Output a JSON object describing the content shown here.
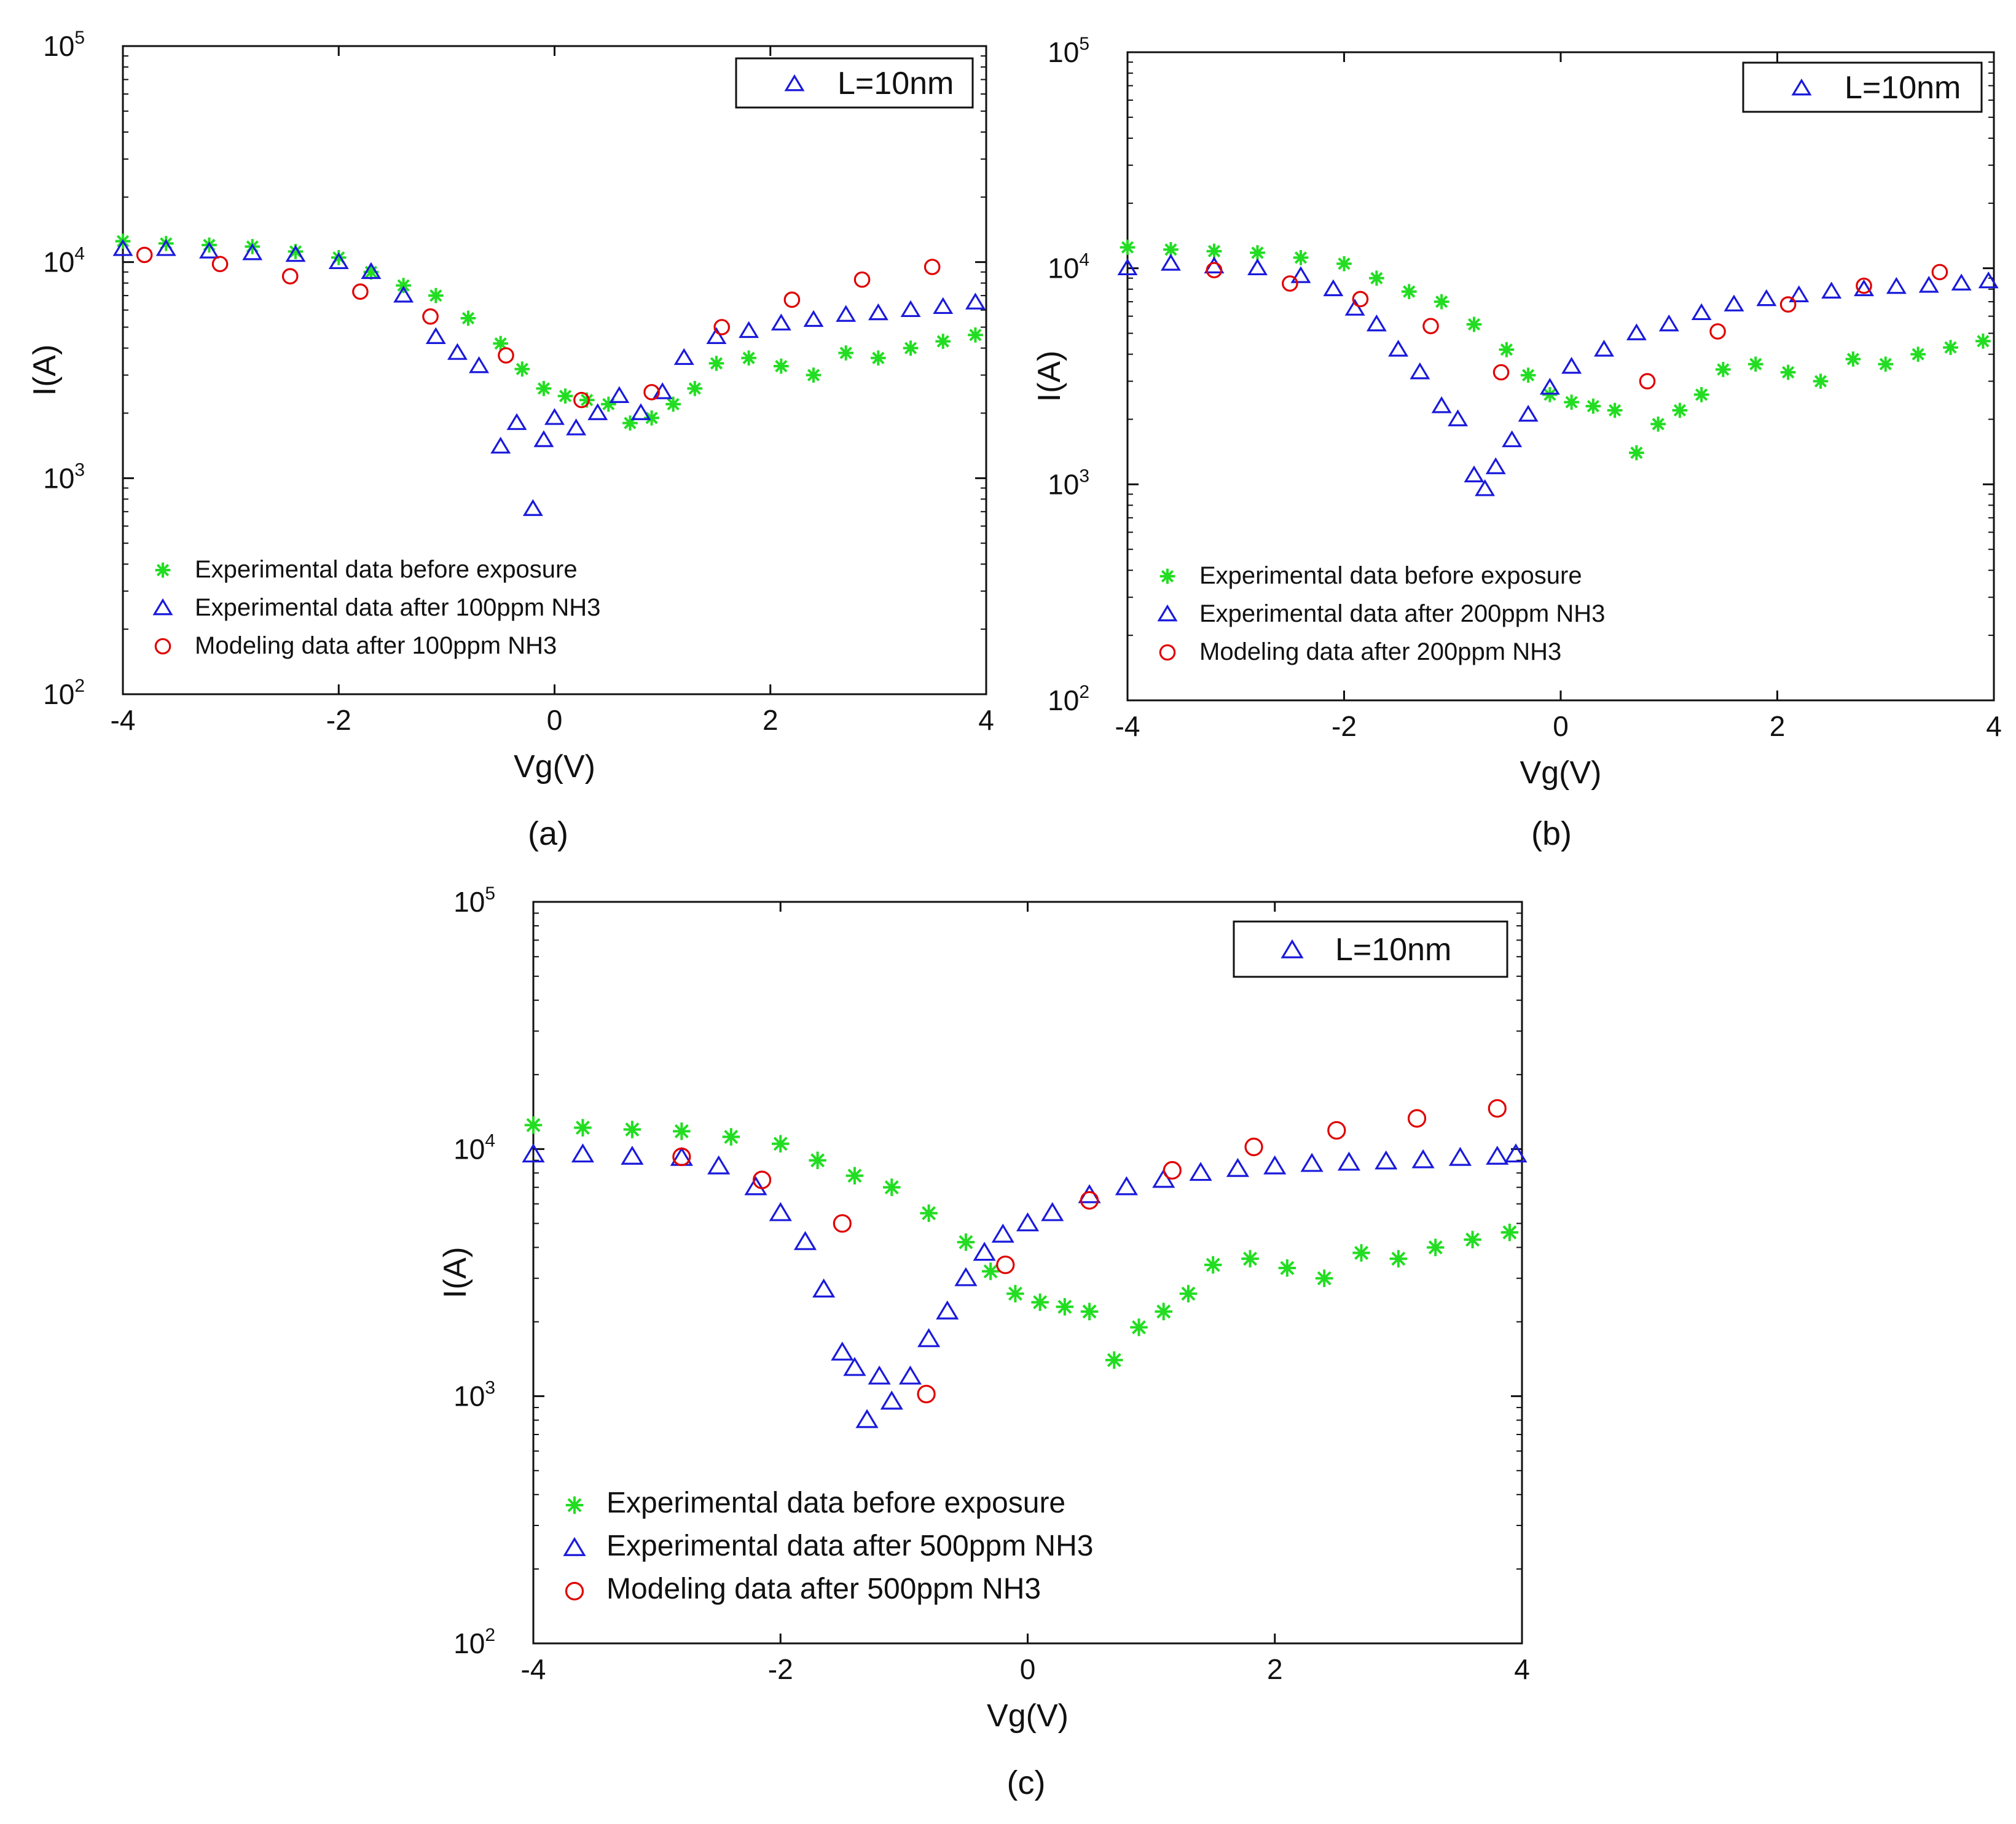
{
  "chart_data": [
    {
      "type": "scatter",
      "panel_label": "(a)",
      "xlabel": "Vg(V)",
      "ylabel": "I(A)",
      "xlim": [
        -4,
        4
      ],
      "ylim": [
        100,
        100000
      ],
      "yscale": "log",
      "x_ticks": [
        "-4",
        "-2",
        "0",
        "2",
        "4"
      ],
      "y_ticks": [
        {
          "base": "10",
          "exp": "2"
        },
        {
          "base": "10",
          "exp": "3"
        },
        {
          "base": "10",
          "exp": "4"
        },
        {
          "base": "10",
          "exp": "5"
        }
      ],
      "box_legend": "L=10nm",
      "legend": [
        "Experimental data before exposure",
        "Experimental data after 100ppm NH3",
        "Modeling data after 100ppm NH3"
      ],
      "series": [
        {
          "name": "Experimental data before exposure",
          "marker": "star",
          "color": "#22dd22",
          "x": [
            -4.0,
            -3.6,
            -3.2,
            -2.8,
            -2.4,
            -2.0,
            -1.7,
            -1.4,
            -1.1,
            -0.8,
            -0.5,
            -0.3,
            -0.1,
            0.1,
            0.3,
            0.5,
            0.7,
            0.9,
            1.1,
            1.3,
            1.5,
            1.8,
            2.1,
            2.4,
            2.7,
            3.0,
            3.3,
            3.6,
            3.9
          ],
          "y": [
            12500,
            12200,
            12000,
            11800,
            11200,
            10500,
            9000,
            7800,
            7000,
            5500,
            4200,
            3200,
            2600,
            2400,
            2300,
            2200,
            1800,
            1900,
            2200,
            2600,
            3400,
            3600,
            3300,
            3000,
            3800,
            3600,
            4000,
            4300,
            4600
          ]
        },
        {
          "name": "Experimental data after 100ppm NH3",
          "marker": "triangle",
          "color": "#1a1adc",
          "x": [
            -4.0,
            -3.6,
            -3.2,
            -2.8,
            -2.4,
            -2.0,
            -1.7,
            -1.4,
            -1.1,
            -0.9,
            -0.7,
            -0.5,
            -0.35,
            -0.2,
            -0.1,
            0.0,
            0.2,
            0.4,
            0.6,
            0.8,
            1.0,
            1.2,
            1.5,
            1.8,
            2.1,
            2.4,
            2.7,
            3.0,
            3.3,
            3.6,
            3.9
          ],
          "y": [
            11500,
            11500,
            11200,
            11000,
            10800,
            10000,
            9000,
            7000,
            4500,
            3800,
            3300,
            1400,
            1800,
            720,
            1500,
            1900,
            1700,
            2000,
            2400,
            2000,
            2500,
            3600,
            4500,
            4800,
            5200,
            5400,
            5700,
            5800,
            6000,
            6200,
            6500
          ]
        },
        {
          "name": "Modeling data after 100ppm NH3",
          "marker": "circle",
          "color": "#e00000",
          "x": [
            -3.8,
            -3.1,
            -2.45,
            -1.8,
            -1.15,
            -0.45,
            0.25,
            0.9,
            1.55,
            2.2,
            2.85,
            3.5
          ],
          "y": [
            10800,
            9800,
            8600,
            7300,
            5600,
            3700,
            2300,
            2500,
            5000,
            6700,
            8300,
            9500
          ]
        }
      ]
    },
    {
      "type": "scatter",
      "panel_label": "(b)",
      "xlabel": "Vg(V)",
      "ylabel": "I(A)",
      "xlim": [
        -4,
        4
      ],
      "ylim": [
        100,
        100000
      ],
      "yscale": "log",
      "x_ticks": [
        "-4",
        "-2",
        "0",
        "2",
        "4"
      ],
      "y_ticks": [
        {
          "base": "10",
          "exp": "2"
        },
        {
          "base": "10",
          "exp": "3"
        },
        {
          "base": "10",
          "exp": "4"
        },
        {
          "base": "10",
          "exp": "5"
        }
      ],
      "box_legend": "L=10nm",
      "legend": [
        "Experimental data before exposure",
        "Experimental data after 200ppm NH3",
        "Modeling data after 200ppm NH3"
      ],
      "series": [
        {
          "name": "Experimental data before exposure",
          "marker": "star",
          "color": "#22dd22",
          "x": [
            -4.0,
            -3.6,
            -3.2,
            -2.8,
            -2.4,
            -2.0,
            -1.7,
            -1.4,
            -1.1,
            -0.8,
            -0.5,
            -0.3,
            -0.1,
            0.1,
            0.3,
            0.5,
            0.7,
            0.9,
            1.1,
            1.3,
            1.5,
            1.8,
            2.1,
            2.4,
            2.7,
            3.0,
            3.3,
            3.6,
            3.9
          ],
          "y": [
            12500,
            12200,
            12000,
            11800,
            11200,
            10500,
            9000,
            7800,
            7000,
            5500,
            4200,
            3200,
            2600,
            2400,
            2300,
            2200,
            1400,
            1900,
            2200,
            2600,
            3400,
            3600,
            3300,
            3000,
            3800,
            3600,
            4000,
            4300,
            4600
          ]
        },
        {
          "name": "Experimental data after 200ppm NH3",
          "marker": "triangle",
          "color": "#1a1adc",
          "x": [
            -4.0,
            -3.6,
            -3.2,
            -2.8,
            -2.4,
            -2.1,
            -1.9,
            -1.7,
            -1.5,
            -1.3,
            -1.1,
            -0.95,
            -0.8,
            -0.7,
            -0.6,
            -0.45,
            -0.3,
            -0.1,
            0.1,
            0.4,
            0.7,
            1.0,
            1.3,
            1.6,
            1.9,
            2.2,
            2.5,
            2.8,
            3.1,
            3.4,
            3.7,
            3.95
          ],
          "y": [
            10000,
            10500,
            10200,
            10000,
            9200,
            8000,
            6500,
            5500,
            4200,
            3300,
            2300,
            2000,
            1100,
            950,
            1200,
            1600,
            2100,
            2800,
            3500,
            4200,
            5000,
            5500,
            6200,
            6800,
            7200,
            7500,
            7800,
            8000,
            8200,
            8300,
            8500,
            8700
          ]
        },
        {
          "name": "Modeling data after 200ppm NH3",
          "marker": "circle",
          "color": "#e00000",
          "x": [
            -3.2,
            -2.5,
            -1.85,
            -1.2,
            -0.55,
            0.8,
            1.45,
            2.1,
            2.8,
            3.5
          ],
          "y": [
            9800,
            8500,
            7200,
            5400,
            3300,
            3000,
            5100,
            6800,
            8300,
            9600
          ]
        }
      ]
    },
    {
      "type": "scatter",
      "panel_label": "(c)",
      "xlabel": "Vg(V)",
      "ylabel": "I(A)",
      "xlim": [
        -4,
        4
      ],
      "ylim": [
        100,
        100000
      ],
      "yscale": "log",
      "x_ticks": [
        "-4",
        "-2",
        "0",
        "2",
        "4"
      ],
      "y_ticks": [
        {
          "base": "10",
          "exp": "2"
        },
        {
          "base": "10",
          "exp": "3"
        },
        {
          "base": "10",
          "exp": "4"
        },
        {
          "base": "10",
          "exp": "5"
        }
      ],
      "box_legend": "L=10nm",
      "legend": [
        "Experimental data before exposure",
        "Experimental data after 500ppm NH3",
        "Modeling data after 500ppm NH3"
      ],
      "series": [
        {
          "name": "Experimental data before exposure",
          "marker": "star",
          "color": "#22dd22",
          "x": [
            -4.0,
            -3.6,
            -3.2,
            -2.8,
            -2.4,
            -2.0,
            -1.7,
            -1.4,
            -1.1,
            -0.8,
            -0.5,
            -0.3,
            -0.1,
            0.1,
            0.3,
            0.5,
            0.7,
            0.9,
            1.1,
            1.3,
            1.5,
            1.8,
            2.1,
            2.4,
            2.7,
            3.0,
            3.3,
            3.6,
            3.9
          ],
          "y": [
            12500,
            12200,
            12000,
            11800,
            11200,
            10500,
            9000,
            7800,
            7000,
            5500,
            4200,
            3200,
            2600,
            2400,
            2300,
            2200,
            1400,
            1900,
            2200,
            2600,
            3400,
            3600,
            3300,
            3000,
            3800,
            3600,
            4000,
            4300,
            4600
          ]
        },
        {
          "name": "Experimental data after 500ppm NH3",
          "marker": "triangle",
          "color": "#1a1adc",
          "x": [
            -4.0,
            -3.6,
            -3.2,
            -2.8,
            -2.5,
            -2.2,
            -2.0,
            -1.8,
            -1.65,
            -1.5,
            -1.4,
            -1.3,
            -1.2,
            -1.1,
            -0.95,
            -0.8,
            -0.65,
            -0.5,
            -0.35,
            -0.2,
            0.0,
            0.2,
            0.5,
            0.8,
            1.1,
            1.4,
            1.7,
            2.0,
            2.3,
            2.6,
            2.9,
            3.2,
            3.5,
            3.8,
            3.95
          ],
          "y": [
            9500,
            9500,
            9300,
            9200,
            8500,
            7000,
            5500,
            4200,
            2700,
            1500,
            1300,
            800,
            1200,
            950,
            1200,
            1700,
            2200,
            3000,
            3800,
            4500,
            5000,
            5500,
            6500,
            7000,
            7500,
            8000,
            8300,
            8500,
            8700,
            8800,
            8900,
            9000,
            9200,
            9300,
            9500
          ]
        },
        {
          "name": "Modeling data after 500ppm NH3",
          "marker": "circle",
          "color": "#e00000",
          "x": [
            -2.8,
            -2.15,
            -1.5,
            -0.82,
            -0.18,
            0.5,
            1.17,
            1.83,
            2.5,
            3.15,
            3.8
          ],
          "y": [
            9300,
            7500,
            5000,
            1020,
            3400,
            6200,
            8200,
            10200,
            11900,
            13300,
            14600
          ]
        }
      ]
    }
  ]
}
